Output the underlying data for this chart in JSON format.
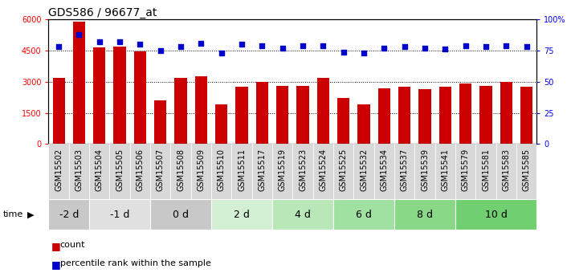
{
  "title": "GDS586 / 96677_at",
  "samples": [
    "GSM15502",
    "GSM15503",
    "GSM15504",
    "GSM15505",
    "GSM15506",
    "GSM15507",
    "GSM15508",
    "GSM15509",
    "GSM15510",
    "GSM15511",
    "GSM15517",
    "GSM15519",
    "GSM15523",
    "GSM15524",
    "GSM15525",
    "GSM15532",
    "GSM15534",
    "GSM15537",
    "GSM15539",
    "GSM15541",
    "GSM15579",
    "GSM15581",
    "GSM15583",
    "GSM15585"
  ],
  "counts": [
    3200,
    5900,
    4650,
    4700,
    4450,
    2100,
    3200,
    3250,
    1900,
    2750,
    3000,
    2800,
    2800,
    3200,
    2200,
    1900,
    2700,
    2750,
    2650,
    2750,
    2900,
    2800,
    3000,
    2750
  ],
  "percentile": [
    78,
    88,
    82,
    82,
    80,
    75,
    78,
    81,
    73,
    80,
    79,
    77,
    79,
    79,
    74,
    73,
    77,
    78,
    77,
    76,
    79,
    78,
    79,
    78
  ],
  "time_groups": [
    {
      "label": "-2 d",
      "start": 0,
      "end": 2,
      "color": "#c8c8c8"
    },
    {
      "label": "-1 d",
      "start": 2,
      "end": 5,
      "color": "#e0e0e0"
    },
    {
      "label": "0 d",
      "start": 5,
      "end": 8,
      "color": "#c8c8c8"
    },
    {
      "label": "2 d",
      "start": 8,
      "end": 11,
      "color": "#d4f0d4"
    },
    {
      "label": "4 d",
      "start": 11,
      "end": 14,
      "color": "#b8e8b8"
    },
    {
      "label": "6 d",
      "start": 14,
      "end": 17,
      "color": "#a0e0a0"
    },
    {
      "label": "8 d",
      "start": 17,
      "end": 20,
      "color": "#88d888"
    },
    {
      "label": "10 d",
      "start": 20,
      "end": 24,
      "color": "#70d070"
    }
  ],
  "bar_color": "#cc0000",
  "dot_color": "#0000cc",
  "left_ylim": [
    0,
    6000
  ],
  "left_yticks": [
    0,
    1500,
    3000,
    4500,
    6000
  ],
  "right_ylim": [
    0,
    100
  ],
  "right_yticks": [
    0,
    25,
    50,
    75,
    100
  ],
  "title_fontsize": 10,
  "tick_fontsize": 7,
  "label_fontsize": 7,
  "legend_fontsize": 8,
  "time_fontsize": 9
}
